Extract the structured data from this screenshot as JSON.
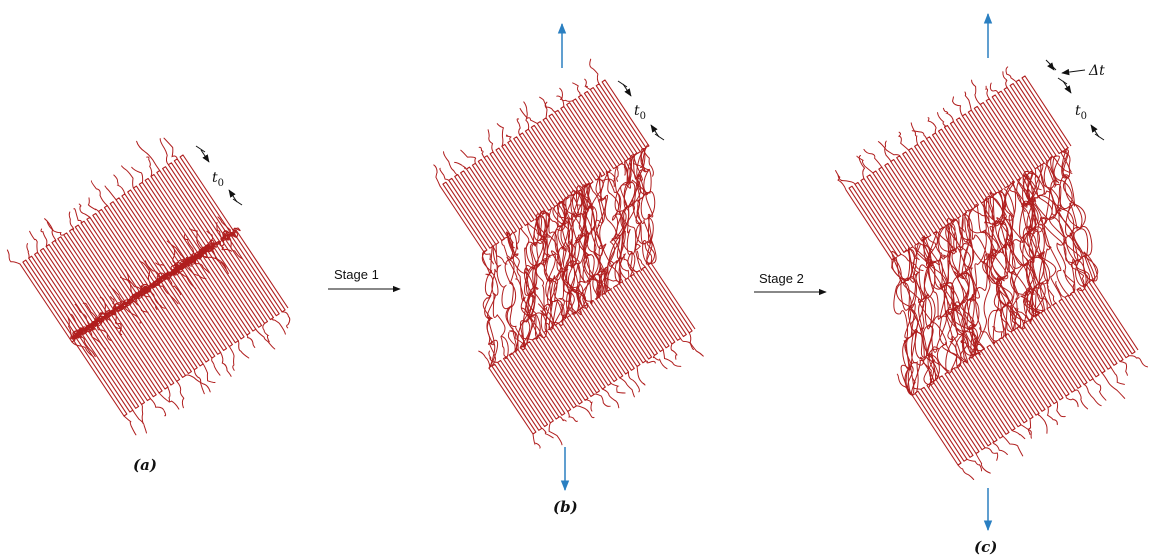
{
  "panels": [
    {
      "id": "a",
      "label": "(a)"
    },
    {
      "id": "b",
      "label": "(b)"
    },
    {
      "id": "c",
      "label": "(c)"
    }
  ],
  "stages": [
    {
      "id": "stage-1",
      "label": "Stage 1"
    },
    {
      "id": "stage-2",
      "label": "Stage 2"
    }
  ],
  "dimensions": {
    "thickness": {
      "symbol": "t",
      "subscript": "0"
    },
    "delta_thickness": {
      "symbol": "Δt"
    }
  },
  "colors": {
    "chain": "#b01e1e",
    "load_arrow": "#2a7fc1",
    "text": "#111111"
  }
}
